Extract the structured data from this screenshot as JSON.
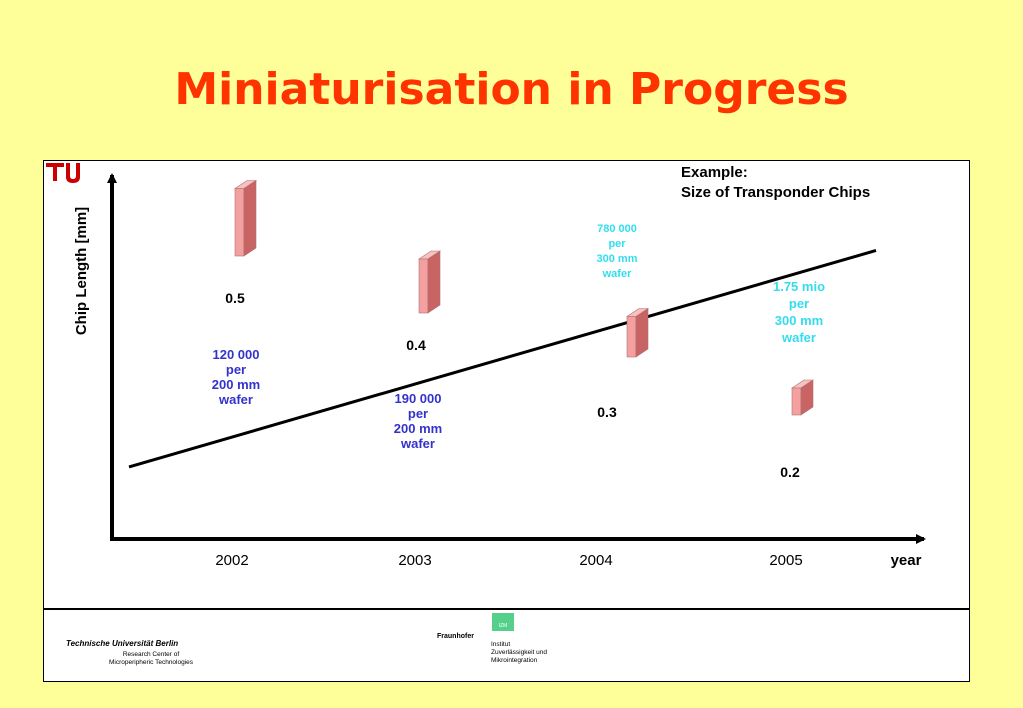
{
  "slide": {
    "title": "Miniaturisation in Progress"
  },
  "chart_data": {
    "type": "line",
    "ylabel": "Chip Length [mm]",
    "xlabel": "year",
    "categories": [
      "2002",
      "2003",
      "2004",
      "2005"
    ],
    "values": [
      0.5,
      0.4,
      0.3,
      0.2
    ],
    "value_labels": [
      "0.5",
      "0.4",
      "0.3",
      "0.2"
    ],
    "annotation": {
      "line1": "Example:",
      "line2": "Size of Transponder Chips"
    },
    "wafer_notes": [
      {
        "lines": [
          "120 000",
          "per",
          "200 mm",
          "wafer"
        ],
        "color": "#3333cc"
      },
      {
        "lines": [
          "190 000",
          "per",
          "200 mm",
          "wafer"
        ],
        "color": "#3333cc"
      },
      {
        "lines": [
          "780 000",
          "per",
          "300 mm",
          "wafer"
        ],
        "color": "#33ddee"
      },
      {
        "lines": [
          "1.75 mio",
          "per",
          "300 mm",
          "wafer"
        ],
        "color": "#33ddee"
      }
    ],
    "grid": false,
    "colors": {
      "line": "#000000",
      "chip_face": "#f4a0a0",
      "chip_side": "#c86464",
      "chip_top": "#f8c0c0"
    }
  },
  "footer": {
    "tu_logo_text": "TU",
    "tu_name": "Technische Universität Berlin",
    "tu_sub1": "Research Center of",
    "tu_sub2": "Microperipheric Technologies",
    "fh_name": "Fraunhofer",
    "fh_mark": "IZM",
    "fh_inst1": "Institut",
    "fh_inst2": "Zuverlässigkeit und",
    "fh_inst3": "Mikrointegration"
  }
}
